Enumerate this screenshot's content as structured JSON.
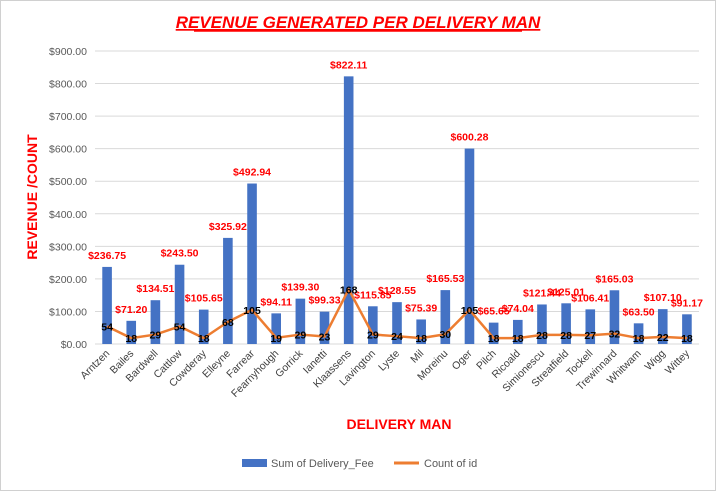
{
  "chart_data": {
    "type": "bar",
    "title": "REVENUE GENERATED PER DELIVERY MAN",
    "xlabel": "DELIVERY MAN",
    "ylabel": "REVENUE /COUNT",
    "ylim": [
      0,
      900
    ],
    "ytick_values": [
      0,
      100,
      200,
      300,
      400,
      500,
      600,
      700,
      800,
      900
    ],
    "ytick_labels": [
      "$0.00",
      "$100.00",
      "$200.00",
      "$300.00",
      "$400.00",
      "$500.00",
      "$600.00",
      "$700.00",
      "$800.00",
      "$900.00"
    ],
    "grid": true,
    "legend_position": "bottom",
    "categories": [
      "Arntzen",
      "Bailes",
      "Bardwell",
      "Cattlow",
      "Cowderay",
      "Elleyne",
      "Farrear",
      "Fearnyhough",
      "Gorrick",
      "Ianetti",
      "Klaassens",
      "Lavington",
      "Lyste",
      "Mil",
      "Moreinu",
      "Oger",
      "Pilch",
      "Ricoald",
      "Simionescu",
      "Streatfield",
      "Tockell",
      "Trewinnard",
      "Whitwam",
      "Wigg",
      "Wittey"
    ],
    "series": [
      {
        "name": "Sum of Delivery_Fee",
        "type": "bar",
        "color": "#4472c4",
        "values": [
          236.75,
          71.2,
          134.51,
          243.5,
          105.65,
          325.92,
          492.94,
          94.11,
          139.3,
          99.33,
          822.11,
          115.85,
          128.55,
          75.39,
          165.53,
          600.28,
          65.65,
          74.04,
          121.44,
          125.01,
          106.41,
          165.03,
          63.5,
          107.1,
          91.17
        ],
        "labels": [
          "$236.75",
          "$71.20",
          "$134.51",
          "$243.50",
          "$105.65",
          "$325.92",
          "$492.94",
          "$94.11",
          "$139.30",
          "$99.33",
          "$822.11",
          "$115.85",
          "$128.55",
          "$75.39",
          "$165.53",
          "$600.28",
          "$65.65",
          "$74.04",
          "$121.44",
          "$125.01",
          "$106.41",
          "$165.03",
          "$63.50",
          "$107.10",
          "$91.17"
        ]
      },
      {
        "name": "Count of id",
        "type": "line",
        "color": "#ed7d31",
        "values": [
          54,
          18,
          29,
          54,
          18,
          68,
          105,
          19,
          29,
          23,
          168,
          29,
          24,
          18,
          30,
          105,
          18,
          18,
          28,
          28,
          27,
          32,
          18,
          22,
          18
        ]
      }
    ]
  },
  "colors": {
    "title": "#ff0000",
    "axis_titles": "#ff0000",
    "bar_labels": "#ff0000",
    "count_labels": "#000000",
    "grid": "#d9d9d9"
  }
}
